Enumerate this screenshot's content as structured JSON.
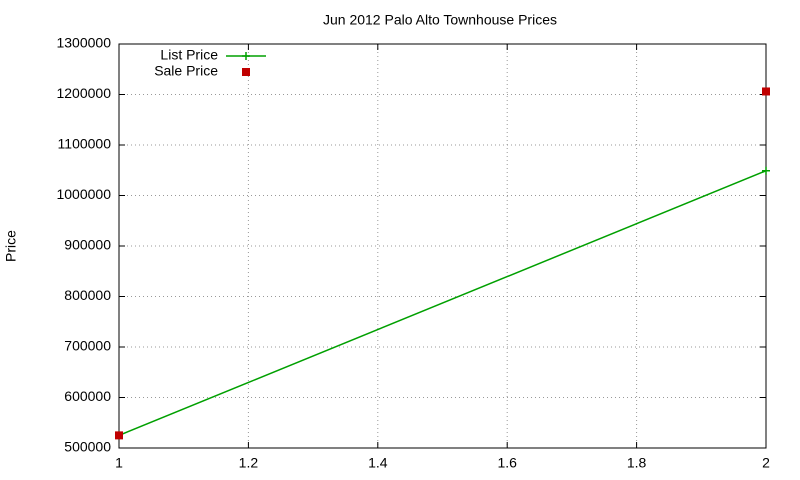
{
  "chart_data": {
    "type": "line",
    "title": "Jun 2012 Palo Alto Townhouse Prices",
    "y_label": "Price",
    "x": [
      1,
      2
    ],
    "series": [
      {
        "name": "List Price",
        "color": "#00a000",
        "values": [
          525000,
          1049000
        ],
        "line": true,
        "marker": "plus"
      },
      {
        "name": "Sale Price",
        "color": "#c00000",
        "values": [
          525000,
          1206000
        ],
        "line": false,
        "marker": "square"
      }
    ],
    "xlim": [
      1,
      2
    ],
    "xticks": [
      1,
      1.2,
      1.4,
      1.6,
      1.8,
      2
    ],
    "ylim": [
      500000,
      1300000
    ],
    "yticks": [
      500000,
      600000,
      700000,
      800000,
      900000,
      1000000,
      1100000,
      1200000,
      1300000
    ],
    "grid": true,
    "legend": "top-left"
  }
}
